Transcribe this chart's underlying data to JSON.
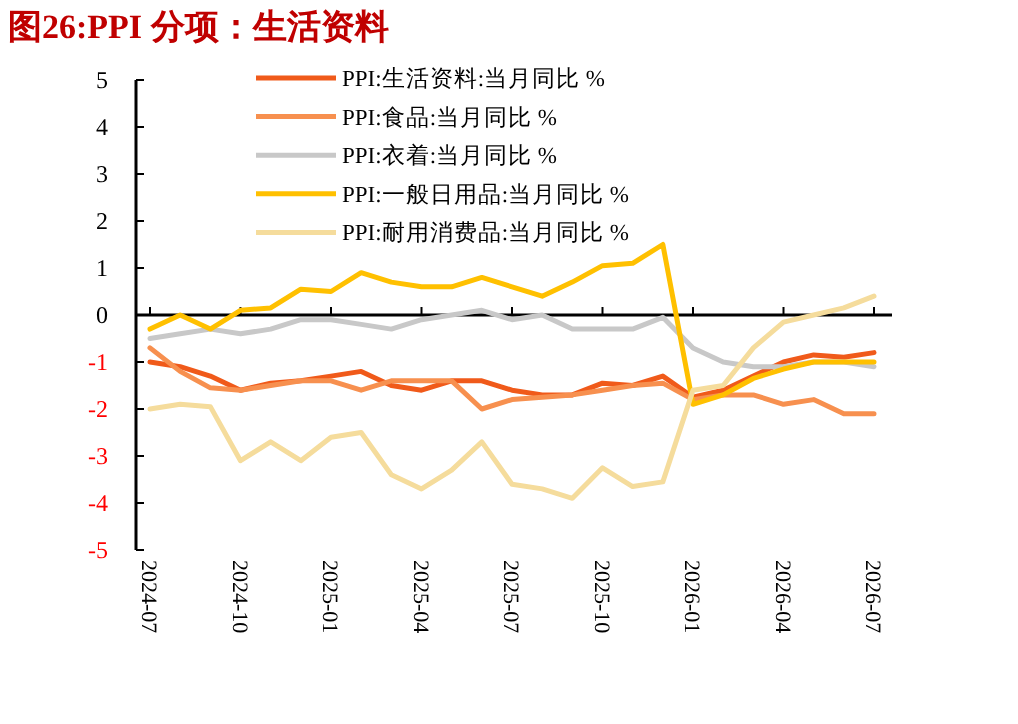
{
  "chart_data": {
    "type": "line",
    "title": "图26:PPI 分项：生活资料",
    "categories": [
      "2024-07",
      null,
      null,
      "2024-10",
      null,
      null,
      "2025-01",
      null,
      null,
      "2025-04",
      null,
      null,
      "2025-07",
      null,
      null,
      "2025-10",
      null,
      null,
      "2026-01",
      null,
      null,
      "2026-04",
      null,
      null,
      "2026-07"
    ],
    "ylim": [
      -5,
      5
    ],
    "yticks": [
      -5,
      -4,
      -3,
      -2,
      -1,
      0,
      1,
      2,
      3,
      4,
      5
    ],
    "legend": "top",
    "series": [
      {
        "name": "PPI:生活资料:当月同比 %",
        "color": "#f05a1a",
        "values": [
          -1.0,
          -1.1,
          -1.3,
          -1.6,
          -1.45,
          -1.4,
          -1.3,
          -1.2,
          -1.5,
          -1.6,
          -1.4,
          -1.4,
          -1.6,
          -1.7,
          -1.7,
          -1.45,
          -1.5,
          -1.3,
          -1.75,
          -1.6,
          -1.3,
          -1.0,
          -0.85,
          -0.9,
          -0.8
        ]
      },
      {
        "name": "PPI:食品:当月同比 %",
        "color": "#f7904f",
        "values": [
          -0.7,
          -1.2,
          -1.55,
          -1.6,
          -1.5,
          -1.4,
          -1.4,
          -1.6,
          -1.4,
          -1.4,
          -1.4,
          -2.0,
          -1.8,
          -1.75,
          -1.7,
          -1.6,
          -1.5,
          -1.45,
          -1.8,
          -1.7,
          -1.7,
          -1.9,
          -1.8,
          -2.1,
          -2.1
        ]
      },
      {
        "name": "PPI:衣着:当月同比 %",
        "color": "#c8c8c8",
        "values": [
          -0.5,
          -0.4,
          -0.3,
          -0.4,
          -0.3,
          -0.1,
          -0.1,
          -0.2,
          -0.3,
          -0.1,
          0.0,
          0.1,
          -0.1,
          0.0,
          -0.3,
          -0.3,
          -0.3,
          -0.05,
          -0.7,
          -1.0,
          -1.1,
          -1.1,
          -1.0,
          -1.0,
          -1.1
        ]
      },
      {
        "name": "PPI:一般日用品:当月同比 %",
        "color": "#ffc000",
        "values": [
          -0.3,
          0.0,
          -0.3,
          0.1,
          0.15,
          0.55,
          0.5,
          0.9,
          0.7,
          0.6,
          0.6,
          0.8,
          0.6,
          0.4,
          0.7,
          1.05,
          1.1,
          1.5,
          -1.9,
          -1.7,
          -1.35,
          -1.15,
          -1.0,
          -1.0,
          -1.0
        ]
      },
      {
        "name": "PPI:耐用消费品:当月同比 %",
        "color": "#f5dc9c",
        "values": [
          -2.0,
          -1.9,
          -1.95,
          -3.1,
          -2.7,
          -3.1,
          -2.6,
          -2.5,
          -3.4,
          -3.7,
          -3.3,
          -2.7,
          -3.6,
          -3.7,
          -3.9,
          -3.25,
          -3.65,
          -3.55,
          -1.6,
          -1.5,
          -0.7,
          -0.15,
          0.0,
          0.15,
          0.4
        ]
      }
    ]
  }
}
